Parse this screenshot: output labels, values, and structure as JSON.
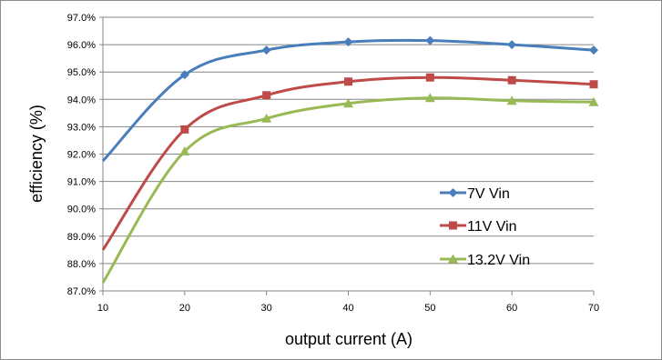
{
  "chart_data": {
    "type": "line",
    "title": "",
    "xlabel": "output current  (A)",
    "ylabel": "efficiency  (%)",
    "x": [
      10,
      20,
      30,
      40,
      50,
      60,
      70
    ],
    "xlim": [
      10,
      70
    ],
    "ylim": [
      87.0,
      97.0
    ],
    "y_ticks": [
      "87.0%",
      "88.0%",
      "89.0%",
      "90.0%",
      "91.0%",
      "92.0%",
      "93.0%",
      "94.0%",
      "95.0%",
      "96.0%",
      "97.0%"
    ],
    "x_ticks": [
      "10",
      "20",
      "30",
      "40",
      "50",
      "60",
      "70"
    ],
    "grid": "horizontal",
    "legend_position": "right",
    "series": [
      {
        "name": "7V Vin",
        "color": "#4a7ebb",
        "marker": "diamond",
        "values": [
          91.75,
          94.9,
          95.8,
          96.1,
          96.15,
          96.0,
          95.8
        ]
      },
      {
        "name": "11V Vin",
        "color": "#be4b48",
        "marker": "square",
        "values": [
          88.5,
          92.9,
          94.15,
          94.65,
          94.8,
          94.7,
          94.55
        ]
      },
      {
        "name": "13.2V Vin",
        "color": "#98b954",
        "marker": "triangle",
        "values": [
          87.3,
          92.1,
          93.3,
          93.85,
          94.05,
          93.95,
          93.9
        ]
      }
    ]
  }
}
